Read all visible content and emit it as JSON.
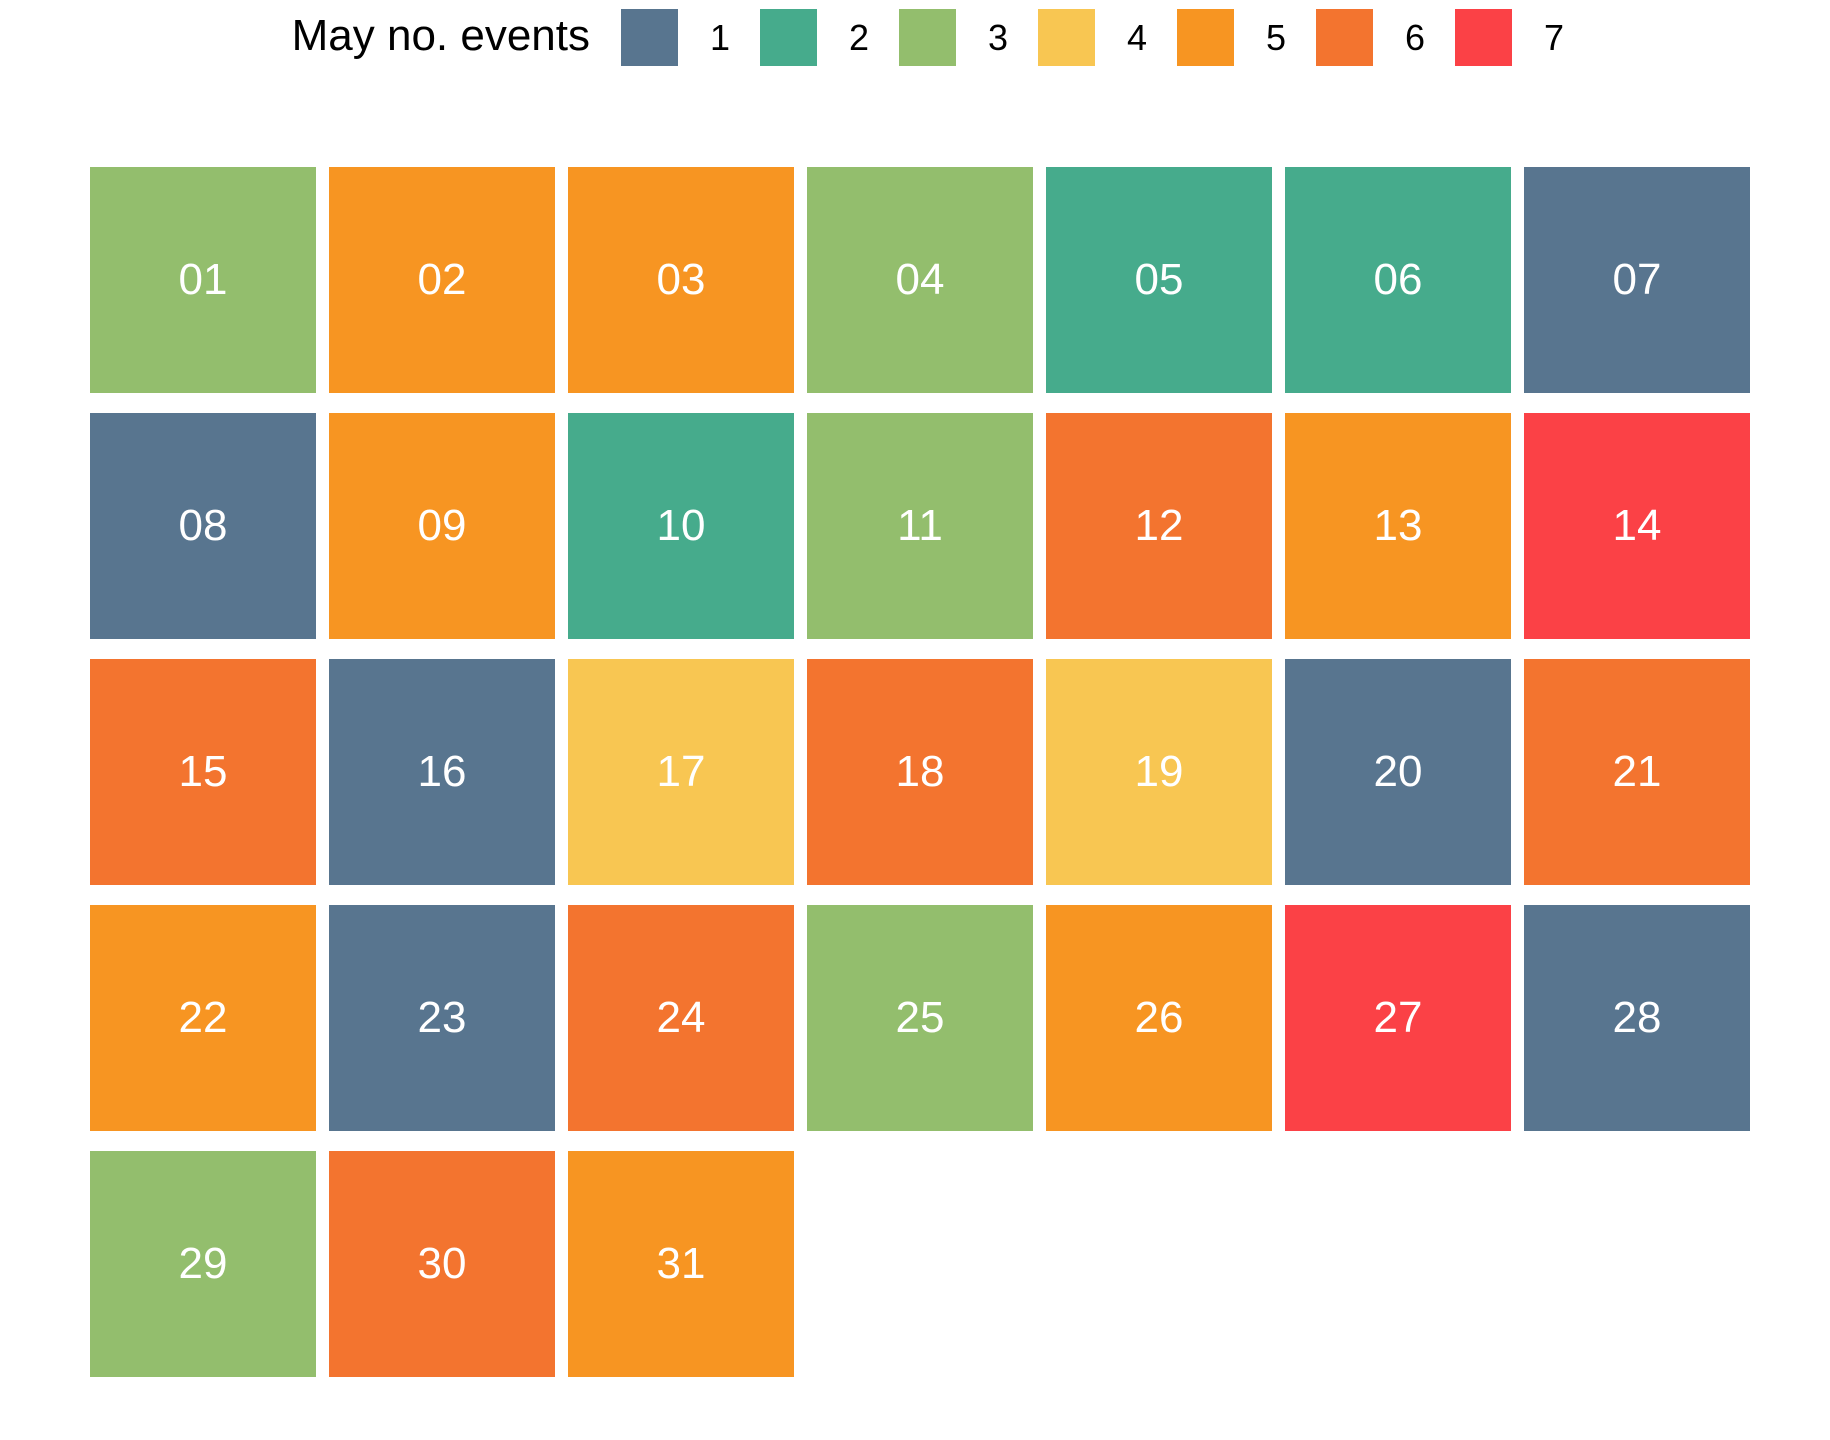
{
  "chart_data": {
    "type": "heatmap",
    "legend": {
      "title": "May no. events",
      "placement": "top",
      "levels": [
        "1",
        "2",
        "3",
        "4",
        "5",
        "6",
        "7"
      ],
      "colors": [
        "#58758f",
        "#46ab8c",
        "#93be6d",
        "#f8c652",
        "#f79522",
        "#f3742f",
        "#fb4146"
      ]
    },
    "columns": 7,
    "days": [
      "01",
      "02",
      "03",
      "04",
      "05",
      "06",
      "07",
      "08",
      "09",
      "10",
      "11",
      "12",
      "13",
      "14",
      "15",
      "16",
      "17",
      "18",
      "19",
      "20",
      "21",
      "22",
      "23",
      "24",
      "25",
      "26",
      "27",
      "28",
      "29",
      "30",
      "31"
    ],
    "values": [
      3,
      5,
      5,
      3,
      2,
      2,
      1,
      1,
      5,
      2,
      3,
      6,
      5,
      7,
      6,
      1,
      4,
      6,
      4,
      1,
      6,
      5,
      1,
      6,
      3,
      5,
      7,
      1,
      3,
      6,
      5
    ],
    "label_color": "#ffffff"
  }
}
